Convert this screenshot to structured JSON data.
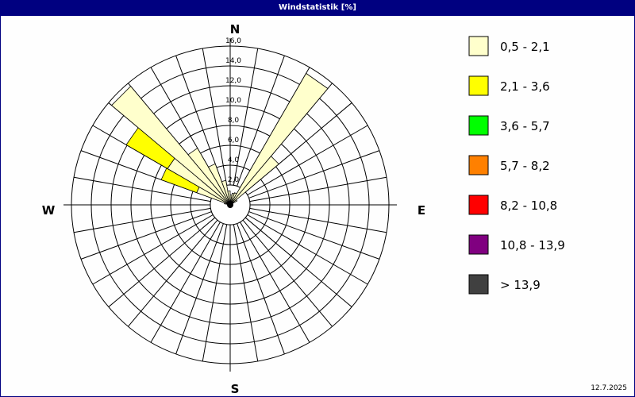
{
  "title": "Windstatistik [%]",
  "date": "12.7.2025",
  "chart_data": {
    "type": "wind-rose",
    "title": "Windstatistik [%]",
    "unit": "%",
    "directions": {
      "north": "N",
      "east": "E",
      "south": "S",
      "west": "W"
    },
    "radial_ticks": [
      "2,0",
      "4,0",
      "6,0",
      "8,0",
      "10,0",
      "12,0",
      "14,0",
      "16,0"
    ],
    "radial_range": [
      0,
      16
    ],
    "sector_width_deg": 10,
    "grid": true,
    "legend_position": "right",
    "legend": [
      {
        "label": "0,5 - 2,1",
        "color": "#ffffcc"
      },
      {
        "label": "2,1 - 3,6",
        "color": "#ffff00"
      },
      {
        "label": "3,6 - 5,7",
        "color": "#00ff00"
      },
      {
        "label": "5,7 - 8,2",
        "color": "#ff8000"
      },
      {
        "label": "8,2 - 10,8",
        "color": "#ff0000"
      },
      {
        "label": "10,8 - 13,9",
        "color": "#800080"
      },
      {
        "label": " > 13,9",
        "color": "#404040"
      }
    ],
    "sectors": [
      {
        "from_deg": 0,
        "to_deg": 10,
        "values": [
          1.0,
          0
        ]
      },
      {
        "from_deg": 10,
        "to_deg": 20,
        "values": [
          1.2,
          0
        ]
      },
      {
        "from_deg": 20,
        "to_deg": 30,
        "values": [
          1.3,
          0
        ]
      },
      {
        "from_deg": 30,
        "to_deg": 40,
        "values": [
          15.3,
          0
        ]
      },
      {
        "from_deg": 40,
        "to_deg": 50,
        "values": [
          6.4,
          0
        ]
      },
      {
        "from_deg": 50,
        "to_deg": 60,
        "values": [
          0.8,
          0
        ]
      },
      {
        "from_deg": 280,
        "to_deg": 290,
        "values": [
          0.6,
          0
        ]
      },
      {
        "from_deg": 290,
        "to_deg": 300,
        "values": [
          3.6,
          3.8
        ]
      },
      {
        "from_deg": 300,
        "to_deg": 310,
        "values": [
          7.3,
          4.8
        ]
      },
      {
        "from_deg": 310,
        "to_deg": 320,
        "values": [
          15.6,
          0
        ]
      },
      {
        "from_deg": 320,
        "to_deg": 330,
        "values": [
          6.6,
          0
        ]
      },
      {
        "from_deg": 330,
        "to_deg": 340,
        "values": [
          4.4,
          0
        ]
      },
      {
        "from_deg": 340,
        "to_deg": 350,
        "values": [
          2.5,
          0
        ]
      },
      {
        "from_deg": 350,
        "to_deg": 360,
        "values": [
          1.4,
          0
        ]
      }
    ]
  }
}
